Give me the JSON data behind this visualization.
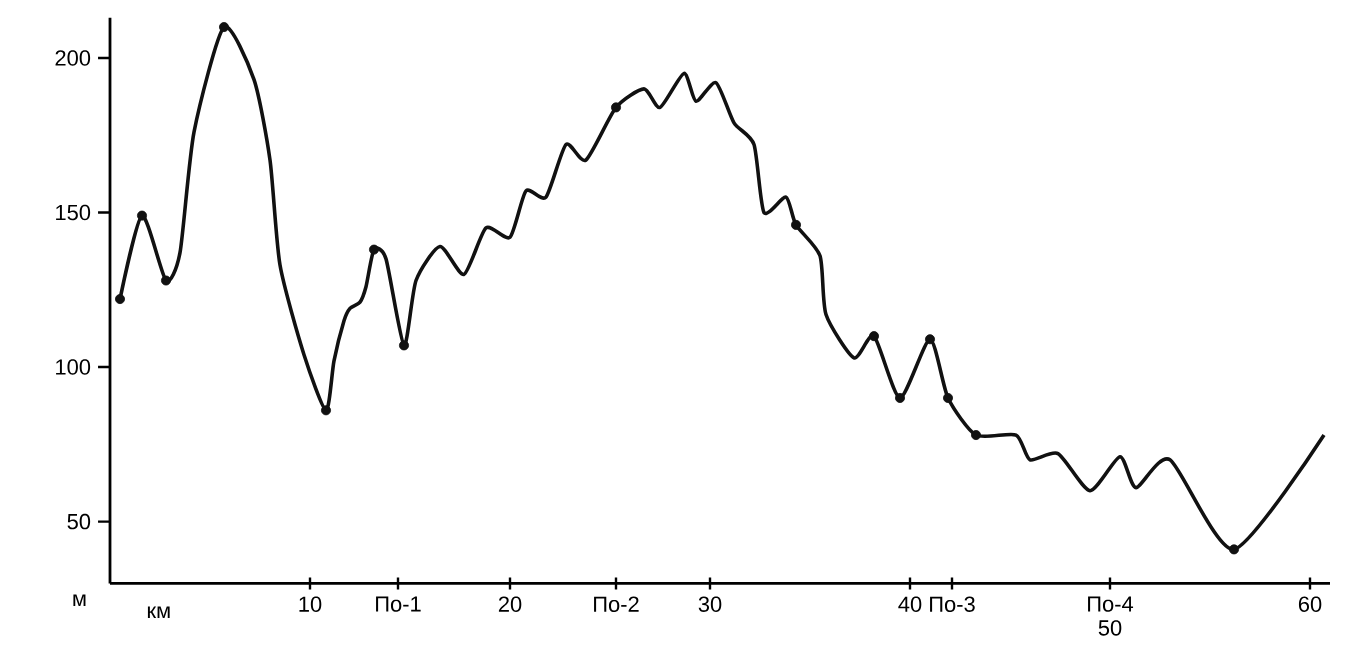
{
  "chart_data": {
    "type": "line",
    "xlabel": "км",
    "ylabel": "м",
    "xlim": [
      0,
      61
    ],
    "ylim": [
      30,
      213
    ],
    "xticks": [
      10,
      {
        "value": 14.4,
        "label": "По-1"
      },
      20,
      {
        "value": 25.3,
        "label": "По-2"
      },
      30,
      40,
      {
        "value": 42.1,
        "label": "По-3"
      },
      {
        "value": 50,
        "label": "По-4 50"
      },
      60
    ],
    "yticks": [
      50,
      100,
      150,
      200
    ],
    "series": [
      {
        "color": "#111111",
        "marker": "none",
        "line_style": "solid",
        "x": [
          0.5,
          1.6,
          2.8,
          3.5,
          4.2,
          5.7,
          7.2,
          8.0,
          8.5,
          9.7,
          10.8,
          11.2,
          11.7,
          12.0,
          12.5,
          12.8,
          13.2,
          13.8,
          14.7,
          15.3,
          16.5,
          17.7,
          18.8,
          20.0,
          20.8,
          21.8,
          22.8,
          23.8,
          25.3,
          26.7,
          27.5,
          28.7,
          29.3,
          30.3,
          31.2,
          32.2,
          32.7,
          33.8,
          34.3,
          35.5,
          35.8,
          37.2,
          38.2,
          39.5,
          41.0,
          41.9,
          43.3,
          45.3,
          46.0,
          47.4,
          49.0,
          50.5,
          51.3,
          53.0,
          56.2,
          60.7
        ],
        "values": [
          122,
          149,
          128,
          137,
          176,
          210,
          193,
          167,
          133,
          104,
          86,
          102,
          115,
          119,
          121,
          126,
          138,
          135,
          107,
          128,
          139,
          130,
          145,
          142,
          157,
          155,
          172,
          167,
          184,
          190,
          184,
          195,
          186,
          192,
          179,
          172,
          150,
          155,
          146,
          136,
          117,
          103,
          110,
          90,
          109,
          90,
          78,
          78,
          70,
          72,
          60,
          71,
          61,
          70,
          41,
          78
        ]
      },
      {
        "type": "scatter",
        "color": "#111111",
        "marker": "circle",
        "x": [
          0.5,
          1.6,
          2.8,
          5.7,
          10.8,
          13.2,
          14.7,
          25.3,
          34.3,
          38.2,
          39.5,
          41.0,
          41.9,
          43.3,
          56.2
        ],
        "values": [
          122,
          149,
          128,
          210,
          86,
          138,
          107,
          184,
          146,
          110,
          90,
          109,
          90,
          78,
          41
        ]
      }
    ]
  }
}
